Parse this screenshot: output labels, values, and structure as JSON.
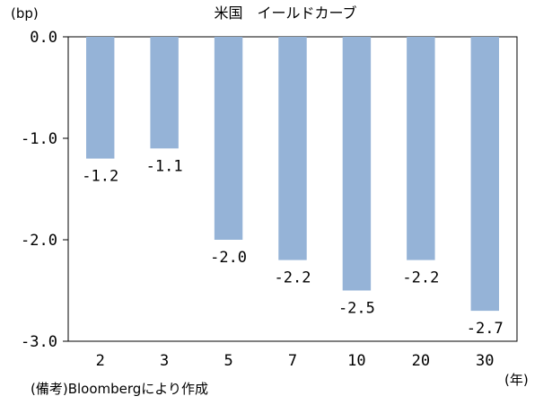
{
  "chart_data": {
    "type": "bar",
    "title": "米国　イールドカーブ",
    "ylabel": "(bp)",
    "xlabel": "(年)",
    "categories": [
      "2",
      "3",
      "5",
      "7",
      "10",
      "20",
      "30"
    ],
    "values": [
      -1.2,
      -1.1,
      -2.0,
      -2.2,
      -2.5,
      -2.2,
      -2.7
    ],
    "data_labels": [
      "-1.2",
      "-1.1",
      "-2.0",
      "-2.2",
      "-2.5",
      "-2.2",
      "-2.7"
    ],
    "ylim": [
      -3.0,
      0.0
    ],
    "yticks": [
      0.0,
      -1.0,
      -2.0,
      -3.0
    ],
    "ytick_labels": [
      "0.0",
      "-1.0",
      "-2.0",
      "-3.0"
    ],
    "bar_color": "#95b3d7",
    "grid": false
  },
  "note": "(備考)Bloombergにより作成"
}
